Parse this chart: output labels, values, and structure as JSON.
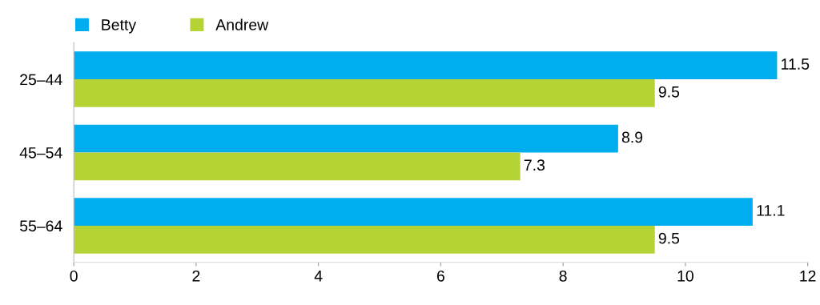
{
  "chart_data": {
    "type": "bar",
    "orientation": "horizontal",
    "categories": [
      "25–44",
      "45–54",
      "55–64"
    ],
    "series": [
      {
        "name": "Betty",
        "color": "#00aeef",
        "values": [
          11.5,
          8.9,
          11.1
        ]
      },
      {
        "name": "Andrew",
        "color": "#b5d334",
        "values": [
          9.5,
          7.3,
          9.5
        ]
      }
    ],
    "xlim": [
      0,
      12
    ],
    "xticks": [
      0,
      2,
      4,
      6,
      8,
      10,
      12
    ],
    "data_labels": true,
    "legend": "top left",
    "grid": false
  }
}
